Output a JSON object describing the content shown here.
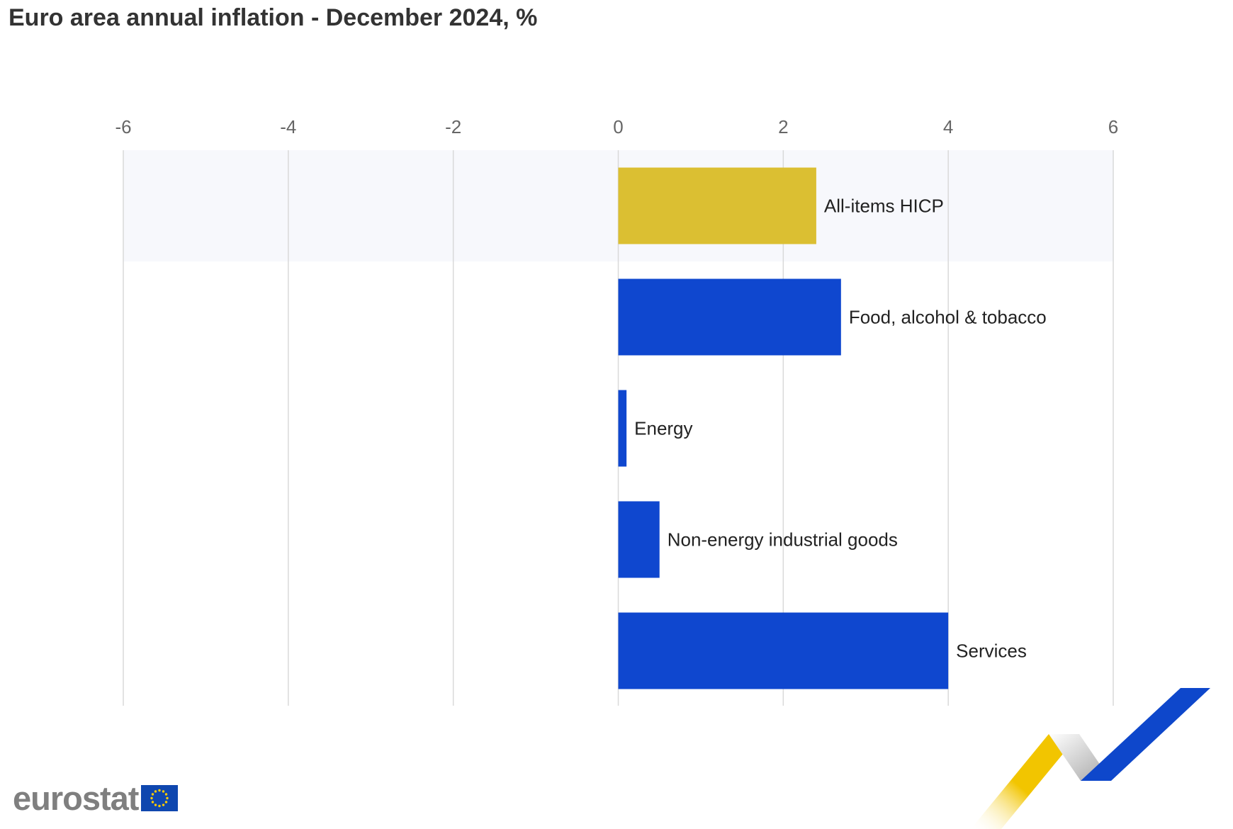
{
  "chart_data": {
    "type": "bar",
    "orientation": "horizontal",
    "title": "Euro area annual inflation - December 2024, %",
    "xlabel": "",
    "ylabel": "",
    "xlim": [
      -6,
      6
    ],
    "x_ticks": [
      -6,
      -4,
      -2,
      0,
      2,
      4,
      6
    ],
    "grid": true,
    "categories": [
      "All-items HICP",
      "Food, alcohol & tobacco",
      "Energy",
      "Non-energy industrial goods",
      "Services"
    ],
    "values": [
      2.4,
      2.7,
      0.1,
      0.5,
      4.0
    ],
    "colors": [
      "#DBBF32",
      "#0F47CF",
      "#0F47CF",
      "#0F47CF",
      "#0F47CF"
    ],
    "highlighted_category": "All-items HICP",
    "highlight_band_color": "#F7F8FC",
    "grid_color": "#D9D9D9",
    "tick_label_color": "#666666",
    "category_label_color": "#222222"
  },
  "branding": {
    "logo_text": "eurostat",
    "flag_color": "#0F47AF",
    "star_color": "#FFCC00",
    "swoosh_colors": [
      "#F2C500",
      "#A6A6A6",
      "#0E47CB"
    ]
  }
}
